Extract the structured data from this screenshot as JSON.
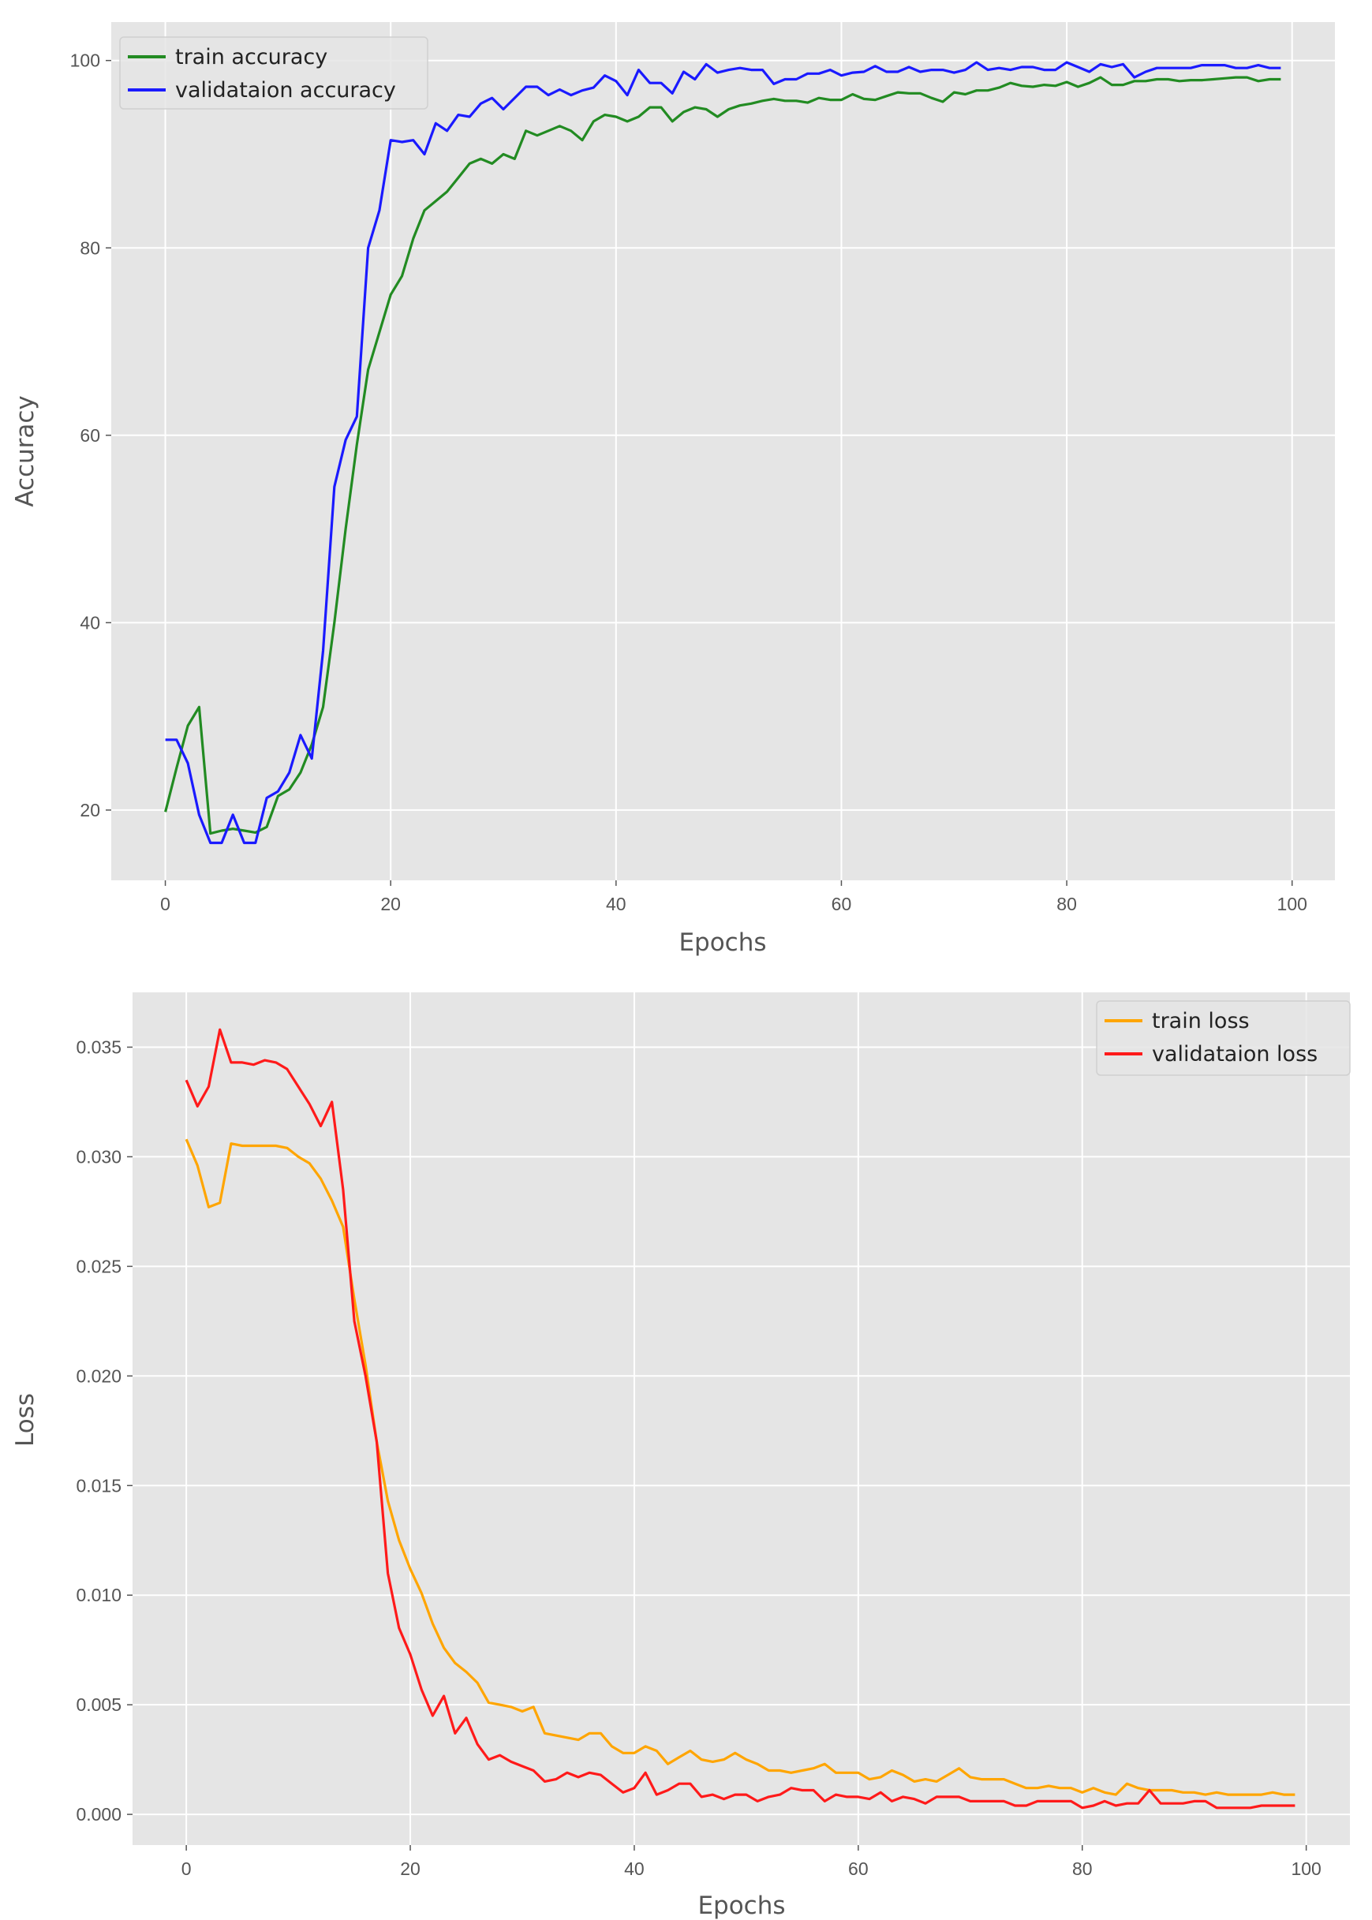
{
  "chart_data": [
    {
      "type": "line",
      "xlabel": "Epochs",
      "ylabel": "Accuracy",
      "xlim": [
        -4.8,
        103.8
      ],
      "ylim": [
        12.5,
        104.1
      ],
      "xticks": [
        0,
        20,
        40,
        60,
        80,
        100
      ],
      "yticks": [
        20,
        40,
        60,
        80,
        100
      ],
      "grid": true,
      "legend": "top-left",
      "series": [
        {
          "name": "train accuracy",
          "color": "#228b22",
          "values": [
            19.8,
            24.5,
            29,
            31,
            17.5,
            17.8,
            18,
            17.8,
            17.6,
            18.2,
            21.5,
            22.2,
            24,
            27,
            31,
            40,
            50,
            59,
            67,
            71,
            75,
            77,
            81,
            84,
            85,
            86,
            87.5,
            89,
            89.5,
            89,
            90,
            89.5,
            92.5,
            92,
            92.5,
            93,
            92.5,
            91.5,
            93.5,
            94.2,
            94,
            93.5,
            94,
            95,
            95,
            93.5,
            94.5,
            95,
            94.8,
            94,
            94.8,
            95.2,
            95.4,
            95.7,
            95.9,
            95.7,
            95.7,
            95.5,
            96,
            95.8,
            95.8,
            96.4,
            95.9,
            95.8,
            96.2,
            96.6,
            96.5,
            96.5,
            96,
            95.6,
            96.6,
            96.4,
            96.8,
            96.8,
            97.1,
            97.6,
            97.3,
            97.2,
            97.4,
            97.3,
            97.7,
            97.2,
            97.6,
            98.2,
            97.4,
            97.4,
            97.8,
            97.8,
            98,
            98,
            97.8,
            97.9,
            97.9,
            98,
            98.1,
            98.2,
            98.2,
            97.8,
            98,
            98
          ]
        },
        {
          "name": "validataion accuracy",
          "color": "#1a1aff",
          "values": [
            27.5,
            27.5,
            25,
            19.5,
            16.5,
            16.5,
            19.5,
            16.5,
            16.5,
            21.3,
            22,
            24,
            28,
            25.5,
            37,
            54.5,
            59.5,
            62,
            80,
            84,
            91.5,
            91.3,
            91.5,
            90,
            93.3,
            92.5,
            94.2,
            94,
            95.4,
            96,
            94.8,
            96,
            97.2,
            97.2,
            96.3,
            96.9,
            96.3,
            96.8,
            97.1,
            98.4,
            97.8,
            96.3,
            99,
            97.6,
            97.6,
            96.5,
            98.8,
            98,
            99.6,
            98.7,
            99,
            99.2,
            99,
            99,
            97.5,
            98,
            98,
            98.6,
            98.6,
            99,
            98.4,
            98.7,
            98.8,
            99.4,
            98.8,
            98.8,
            99.3,
            98.8,
            99,
            99,
            98.7,
            99,
            99.8,
            99,
            99.2,
            99,
            99.3,
            99.3,
            99,
            99,
            99.8,
            99.3,
            98.8,
            99.6,
            99.3,
            99.6,
            98.2,
            98.8,
            99.2,
            99.2,
            99.2,
            99.2,
            99.5,
            99.5,
            99.5,
            99.2,
            99.2,
            99.5,
            99.2,
            99.2
          ]
        }
      ]
    },
    {
      "type": "line",
      "xlabel": "Epochs",
      "ylabel": "Loss",
      "xlim": [
        -4.8,
        103.9
      ],
      "ylim": [
        -0.0014,
        0.0375
      ],
      "xticks": [
        0,
        20,
        40,
        60,
        80,
        100
      ],
      "yticks": [
        0.0,
        0.005,
        0.01,
        0.015,
        0.02,
        0.025,
        0.03,
        0.035
      ],
      "ytick_labels": [
        "0.000",
        "0.005",
        "0.010",
        "0.015",
        "0.020",
        "0.025",
        "0.030",
        "0.035"
      ],
      "grid": true,
      "legend": "top-right",
      "series": [
        {
          "name": "train loss",
          "color": "#ffa500",
          "values": [
            0.0308,
            0.0296,
            0.0277,
            0.0279,
            0.0306,
            0.0305,
            0.0305,
            0.0305,
            0.0305,
            0.0304,
            0.03,
            0.0297,
            0.029,
            0.028,
            0.0268,
            0.0235,
            0.0205,
            0.017,
            0.0143,
            0.0125,
            0.0112,
            0.0101,
            0.0087,
            0.0076,
            0.0069,
            0.0065,
            0.006,
            0.0051,
            0.005,
            0.0049,
            0.0047,
            0.0049,
            0.0037,
            0.0036,
            0.0035,
            0.0034,
            0.0037,
            0.0037,
            0.0031,
            0.0028,
            0.0028,
            0.0031,
            0.0029,
            0.0023,
            0.0026,
            0.0029,
            0.0025,
            0.0024,
            0.0025,
            0.0028,
            0.0025,
            0.0023,
            0.002,
            0.002,
            0.0019,
            0.002,
            0.0021,
            0.0023,
            0.0019,
            0.0019,
            0.0019,
            0.0016,
            0.0017,
            0.002,
            0.0018,
            0.0015,
            0.0016,
            0.0015,
            0.0018,
            0.0021,
            0.0017,
            0.0016,
            0.0016,
            0.0016,
            0.0014,
            0.0012,
            0.0012,
            0.0013,
            0.0012,
            0.0012,
            0.001,
            0.0012,
            0.001,
            0.0009,
            0.0014,
            0.0012,
            0.0011,
            0.0011,
            0.0011,
            0.001,
            0.001,
            0.0009,
            0.001,
            0.0009,
            0.0009,
            0.0009,
            0.0009,
            0.001,
            0.0009,
            0.0009
          ]
        },
        {
          "name": "validataion loss",
          "color": "#ff1a1a",
          "values": [
            0.0335,
            0.0323,
            0.0332,
            0.0358,
            0.0343,
            0.0343,
            0.0342,
            0.0344,
            0.0343,
            0.034,
            0.0332,
            0.0324,
            0.0314,
            0.0325,
            0.0285,
            0.0225,
            0.02,
            0.017,
            0.011,
            0.0085,
            0.0073,
            0.0057,
            0.0045,
            0.0054,
            0.0037,
            0.0044,
            0.0032,
            0.0025,
            0.0027,
            0.0024,
            0.0022,
            0.002,
            0.0015,
            0.0016,
            0.0019,
            0.0017,
            0.0019,
            0.0018,
            0.0014,
            0.001,
            0.0012,
            0.0019,
            0.0009,
            0.0011,
            0.0014,
            0.0014,
            0.0008,
            0.0009,
            0.0007,
            0.0009,
            0.0009,
            0.0006,
            0.0008,
            0.0009,
            0.0012,
            0.0011,
            0.0011,
            0.0006,
            0.0009,
            0.0008,
            0.0008,
            0.0007,
            0.001,
            0.0006,
            0.0008,
            0.0007,
            0.0005,
            0.0008,
            0.0008,
            0.0008,
            0.0006,
            0.0006,
            0.0006,
            0.0006,
            0.0004,
            0.0004,
            0.0006,
            0.0006,
            0.0006,
            0.0006,
            0.0003,
            0.0004,
            0.0006,
            0.0004,
            0.0005,
            0.0005,
            0.0011,
            0.0005,
            0.0005,
            0.0005,
            0.0006,
            0.0006,
            0.0003,
            0.0003,
            0.0003,
            0.0003,
            0.0004,
            0.0004,
            0.0004,
            0.0004
          ]
        }
      ]
    }
  ]
}
